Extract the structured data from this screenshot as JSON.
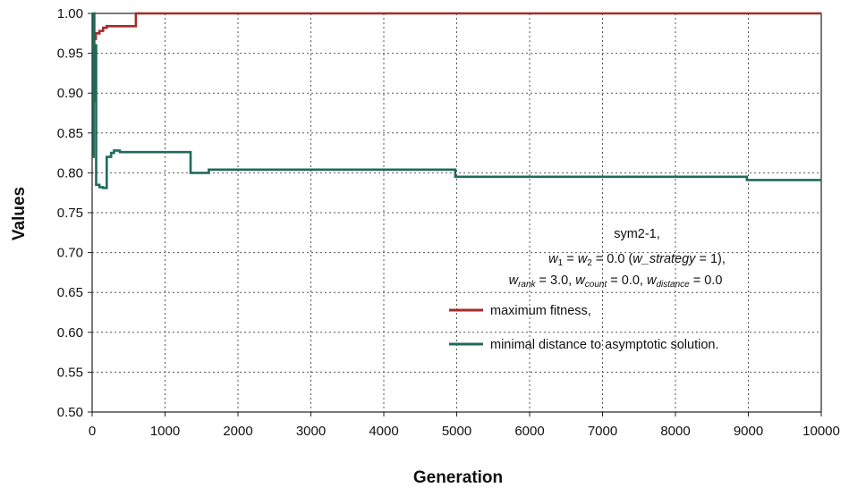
{
  "chart_data": {
    "type": "line",
    "xlabel": "Generation",
    "ylabel": "Values",
    "xlim": [
      0,
      10000
    ],
    "ylim": [
      0.5,
      1.0
    ],
    "xticks": [
      "0",
      "1000",
      "2000",
      "3000",
      "4000",
      "5000",
      "6000",
      "7000",
      "8000",
      "9000",
      "10000"
    ],
    "yticks": [
      "0.50",
      "0.55",
      "0.60",
      "0.65",
      "0.70",
      "0.75",
      "0.80",
      "0.85",
      "0.90",
      "0.95",
      "1.00"
    ],
    "grid": true,
    "legend_position": "right",
    "annotation": {
      "line1": "sym2-1,",
      "line2_w": "w",
      "line2_sub1": "1",
      "line2_eq": " = ",
      "line2_w2": "w",
      "line2_sub2": "2",
      "line2_rest": " = 0.0 (",
      "line2_strategy": "w_strategy",
      "line2_end": " = 1),",
      "line3_w": "w",
      "line3_sub_rank": "rank",
      "line3_a": " = 3.0, ",
      "line3_w2": "w",
      "line3_sub_count": "count",
      "line3_b": " = 0.0, ",
      "line3_w3": "w",
      "line3_sub_distance": "distance",
      "line3_c": " = 0.0"
    },
    "series": [
      {
        "name": "maximum fitness,",
        "color": "#a52a2a",
        "step": true,
        "points": [
          [
            0,
            0.96
          ],
          [
            25,
            0.968
          ],
          [
            50,
            0.975
          ],
          [
            100,
            0.978
          ],
          [
            150,
            0.982
          ],
          [
            200,
            0.984
          ],
          [
            600,
            1.0
          ],
          [
            10000,
            1.0
          ]
        ]
      },
      {
        "name": "minimal distance to asymptotic solution.",
        "color": "#1f6b5a",
        "step": true,
        "points": [
          [
            0,
            0.82
          ],
          [
            20,
            1.0
          ],
          [
            30,
            0.89
          ],
          [
            40,
            0.96
          ],
          [
            55,
            0.785
          ],
          [
            100,
            0.782
          ],
          [
            150,
            0.781
          ],
          [
            200,
            0.82
          ],
          [
            260,
            0.825
          ],
          [
            300,
            0.828
          ],
          [
            380,
            0.826
          ],
          [
            1350,
            0.8
          ],
          [
            1600,
            0.804
          ],
          [
            4980,
            0.795
          ],
          [
            8980,
            0.791
          ],
          [
            10000,
            0.791
          ]
        ]
      }
    ]
  }
}
